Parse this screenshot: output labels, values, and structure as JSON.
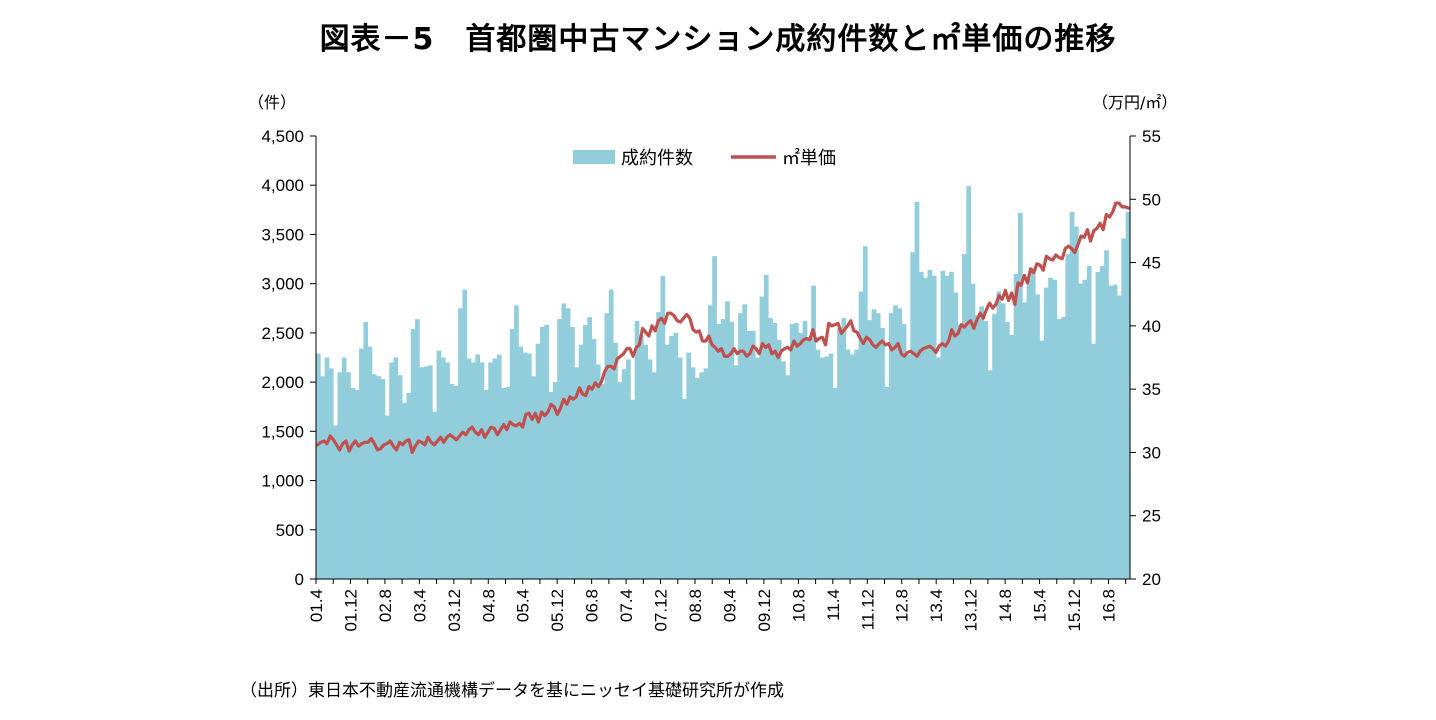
{
  "title": "図表－5　首都圏中古マンション成約件数と㎡単価の推移",
  "source": "（出所）東日本不動産流通機構データを基にニッセイ基礎研究所が作成",
  "colors": {
    "bars": "#92CDDC",
    "line": "#C0504D",
    "axis": "#000000"
  },
  "chart_data": {
    "type": "bar+line",
    "left_axis": {
      "unit": "（件）",
      "min": 0,
      "max": 4500,
      "step": 500,
      "tick_labels": [
        "0",
        "500",
        "1,000",
        "1,500",
        "2,000",
        "2,500",
        "3,000",
        "3,500",
        "4,000",
        "4,500"
      ]
    },
    "right_axis": {
      "unit": "（万円/㎡）",
      "min": 20,
      "max": 55,
      "step": 5,
      "tick_labels": [
        "20",
        "25",
        "30",
        "35",
        "40",
        "45",
        "50",
        "55"
      ]
    },
    "x_tick_labels": [
      "01.4",
      "01.12",
      "02.8",
      "03.4",
      "03.12",
      "04.8",
      "05.4",
      "05.12",
      "06.8",
      "07.4",
      "07.12",
      "08.8",
      "09.4",
      "09.12",
      "10.8",
      "11.4",
      "11.12",
      "12.8",
      "13.4",
      "13.12",
      "14.8",
      "15.4",
      "15.12",
      "16.8"
    ],
    "legend": {
      "position": "top-center",
      "bar_label": "成約件数",
      "line_label": "㎡単価"
    },
    "series": [
      {
        "name": "成約件数",
        "type": "bar",
        "axis": "left",
        "values": [
          2290,
          2060,
          2250,
          2140,
          1560,
          2100,
          2250,
          2100,
          1940,
          1920,
          2340,
          2610,
          2360,
          2080,
          2060,
          2030,
          1660,
          2200,
          2250,
          2070,
          1790,
          1890,
          2540,
          2640,
          2150,
          2160,
          2170,
          1700,
          2320,
          2250,
          2200,
          1980,
          1960,
          2750,
          2940,
          2240,
          2200,
          2280,
          2200,
          1920,
          2200,
          2240,
          2280,
          1940,
          1950,
          2540,
          2780,
          2360,
          2300,
          2290,
          2060,
          2390,
          2560,
          2580,
          1900,
          2000,
          2640,
          2800,
          2750,
          2560,
          2150,
          2380,
          2580,
          2660,
          2440,
          2180,
          1980,
          2700,
          2940,
          2400,
          2000,
          2130,
          2230,
          1820,
          2620,
          2470,
          2380,
          2230,
          2100,
          2710,
          3080,
          2380,
          2470,
          2500,
          2250,
          1830,
          2300,
          2150,
          2040,
          2100,
          2140,
          2780,
          3280,
          2590,
          2640,
          2820,
          2610,
          2170,
          2700,
          2790,
          2520,
          2520,
          2250,
          2870,
          3090,
          2650,
          2600,
          2430,
          2210,
          2070,
          2590,
          2600,
          2500,
          2620,
          2450,
          2980,
          2330,
          2250,
          2260,
          2290,
          1940,
          2550,
          2650,
          2330,
          2280,
          2330,
          2920,
          3380,
          2630,
          2740,
          2700,
          2550,
          1950,
          2700,
          2780,
          2750,
          2590,
          2280,
          3320,
          3830,
          3120,
          3060,
          3140,
          3080,
          2250,
          3130,
          3080,
          3120,
          2910,
          2580,
          3300,
          3990,
          3000,
          2680,
          2770,
          2620,
          2120,
          2690,
          2920,
          2800,
          2610,
          2480,
          3100,
          3720,
          2810,
          3050,
          3160,
          2890,
          2420,
          2960,
          3060,
          3040,
          2640,
          2660,
          3300,
          3730,
          3580,
          3000,
          3040,
          3180,
          2390,
          3120,
          3180,
          3340,
          2980,
          2990,
          2880,
          3460,
          3730
        ]
      },
      {
        "name": "㎡単価",
        "type": "line",
        "axis": "right",
        "values": [
          30.6,
          30.8,
          30.9,
          30.7,
          31.3,
          31.0,
          30.6,
          30.2,
          30.7,
          30.9,
          30.1,
          30.6,
          30.9,
          30.5,
          30.7,
          30.8,
          30.8,
          31.1,
          30.7,
          30.2,
          30.3,
          30.6,
          30.7,
          30.9,
          30.5,
          30.2,
          30.8,
          30.6,
          30.9,
          31.0,
          30.0,
          30.5,
          30.9,
          30.8,
          30.6,
          31.2,
          30.8,
          30.6,
          30.9,
          31.2,
          30.8,
          31.2,
          31.4,
          31.2,
          31.0,
          31.3,
          31.6,
          31.4,
          31.8,
          32.0,
          31.6,
          31.4,
          31.8,
          31.2,
          31.6,
          32.0,
          31.9,
          31.4,
          31.8,
          32.2,
          31.8,
          32.4,
          32.2,
          32.1,
          32.3,
          32.0,
          33.0,
          33.1,
          32.6,
          33.1,
          32.4,
          33.2,
          32.9,
          33.2,
          33.8,
          33.6,
          33.0,
          33.5,
          34.2,
          33.8,
          34.4,
          34.2,
          34.4,
          35.1,
          34.6,
          34.5,
          35.2,
          35.0,
          35.5,
          35.2,
          35.6,
          36.4,
          36.8,
          36.8,
          36.6,
          37.4,
          37.6,
          37.8,
          38.2,
          38.2,
          37.6,
          38.3,
          38.5,
          39.8,
          39.5,
          39.2,
          40.0,
          39.6,
          40.4,
          40.6,
          40.2,
          41.0,
          41.0,
          40.8,
          40.4,
          40.3,
          40.6,
          40.9,
          40.6,
          39.7,
          39.5,
          39.6,
          38.8,
          38.8,
          39.2,
          38.5,
          38.3,
          38.0,
          38.2,
          37.6,
          37.6,
          37.8,
          38.2,
          37.8,
          38.0,
          38.0,
          37.6,
          37.8,
          38.4,
          38.2,
          37.8,
          38.6,
          38.3,
          38.5,
          37.8,
          38.0,
          37.5,
          38.0,
          38.2,
          38.3,
          38.1,
          38.8,
          38.4,
          38.6,
          38.9,
          39.0,
          38.9,
          39.7,
          38.8,
          39.0,
          39.1,
          38.5,
          40.2,
          40.0,
          40.1,
          40.2,
          39.4,
          39.7,
          40.0,
          40.4,
          39.6,
          39.5,
          39.0,
          38.6,
          39.1,
          38.9,
          38.5,
          38.3,
          38.6,
          38.8,
          38.5,
          38.6,
          38.1,
          38.3,
          38.6,
          37.8,
          37.6,
          37.9,
          38.0,
          37.8,
          37.6,
          38.0,
          38.2,
          38.3,
          38.4,
          38.2,
          37.9,
          38.4,
          38.6,
          38.4,
          38.8,
          39.7,
          39.2,
          39.4,
          40.1,
          39.9,
          40.2,
          40.4,
          39.8,
          40.5,
          41.0,
          40.6,
          41.3,
          41.8,
          41.4,
          41.7,
          42.4,
          42.1,
          42.8,
          42.0,
          42.6,
          41.7,
          43.4,
          43.2,
          44.0,
          43.4,
          44.5,
          44.2,
          44.9,
          44.8,
          44.4,
          45.5,
          45.3,
          45.2,
          45.6,
          45.4,
          45.3,
          46.1,
          46.3,
          46.1,
          45.8,
          46.4,
          47.1,
          47.0,
          47.6,
          46.7,
          47.5,
          47.7,
          48.1,
          47.6,
          48.8,
          48.6,
          49.0,
          49.7,
          49.7,
          49.4,
          49.4,
          49.3
        ]
      }
    ]
  }
}
